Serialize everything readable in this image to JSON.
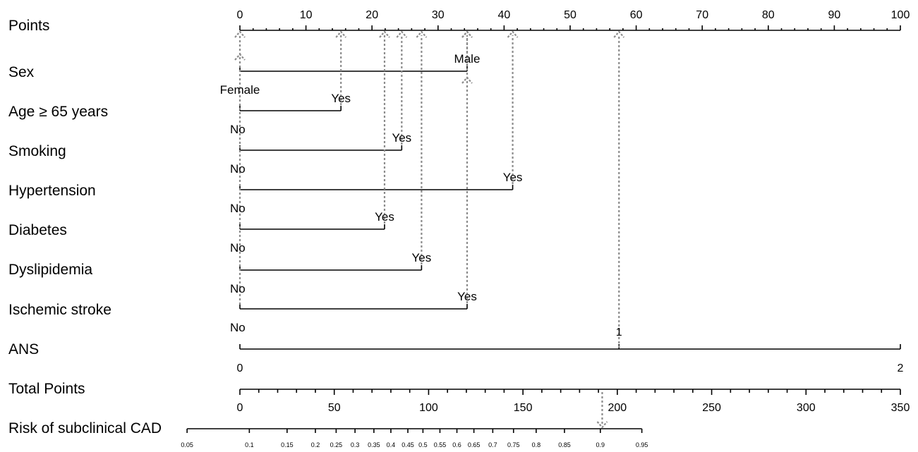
{
  "chart_data": {
    "type": "nomogram",
    "points_axis": {
      "label": "Points",
      "range": [
        0,
        100
      ],
      "ticks": [
        "0",
        "10",
        "20",
        "30",
        "40",
        "50",
        "60",
        "70",
        "80",
        "90",
        "100"
      ]
    },
    "variables": [
      {
        "name": "Sex",
        "levels": [
          {
            "label": "Female",
            "points": 0
          },
          {
            "label": "Male",
            "points": 34.4
          }
        ]
      },
      {
        "name": "Age ≥ 65 years",
        "levels": [
          {
            "label": "No",
            "points": 0
          },
          {
            "label": "Yes",
            "points": 15.3
          }
        ]
      },
      {
        "name": "Smoking",
        "levels": [
          {
            "label": "No",
            "points": 0
          },
          {
            "label": "Yes",
            "points": 24.5
          }
        ]
      },
      {
        "name": "Hypertension",
        "levels": [
          {
            "label": "No",
            "points": 0
          },
          {
            "label": "Yes",
            "points": 41.3
          }
        ]
      },
      {
        "name": "Diabetes",
        "levels": [
          {
            "label": "No",
            "points": 0
          },
          {
            "label": "Yes",
            "points": 21.9
          }
        ]
      },
      {
        "name": "Dyslipidemia",
        "levels": [
          {
            "label": "No",
            "points": 0
          },
          {
            "label": "Yes",
            "points": 27.5
          }
        ]
      },
      {
        "name": "Ischemic stroke",
        "levels": [
          {
            "label": "No",
            "points": 0
          },
          {
            "label": "Yes",
            "points": 34.4
          }
        ]
      }
    ],
    "ans": {
      "name": "ANS",
      "range": [
        0,
        2
      ],
      "end_labels": [
        "0",
        "2"
      ],
      "marked_value_label": "1",
      "marked_value": 1.15,
      "marked_points": 57.4
    },
    "total_points": {
      "label": "Total Points",
      "range": [
        0,
        350
      ],
      "ticks": [
        "0",
        "50",
        "100",
        "150",
        "200",
        "250",
        "300",
        "350"
      ],
      "marked_value": 192
    },
    "risk": {
      "label": "Risk of subclinical CAD",
      "ticks": [
        {
          "label": "0.05",
          "total": -28
        },
        {
          "label": "0.1",
          "total": 5
        },
        {
          "label": "0.15",
          "total": 25
        },
        {
          "label": "0.2",
          "total": 40
        },
        {
          "label": "0.25",
          "total": 51
        },
        {
          "label": "0.3",
          "total": 61
        },
        {
          "label": "0.35",
          "total": 71
        },
        {
          "label": "0.4",
          "total": 80
        },
        {
          "label": "0.45",
          "total": 89
        },
        {
          "label": "0.5",
          "total": 97
        },
        {
          "label": "0.55",
          "total": 106
        },
        {
          "label": "0.6",
          "total": 115
        },
        {
          "label": "0.65",
          "total": 124
        },
        {
          "label": "0.7",
          "total": 134
        },
        {
          "label": "0.75",
          "total": 145
        },
        {
          "label": "0.8",
          "total": 157
        },
        {
          "label": "0.85",
          "total": 172
        },
        {
          "label": "0.9",
          "total": 191
        },
        {
          "label": "0.95",
          "total": 213
        }
      ],
      "marked_value": 0.92
    },
    "guide_line_color": "#8c8c8c",
    "axis_color": "#000000"
  }
}
